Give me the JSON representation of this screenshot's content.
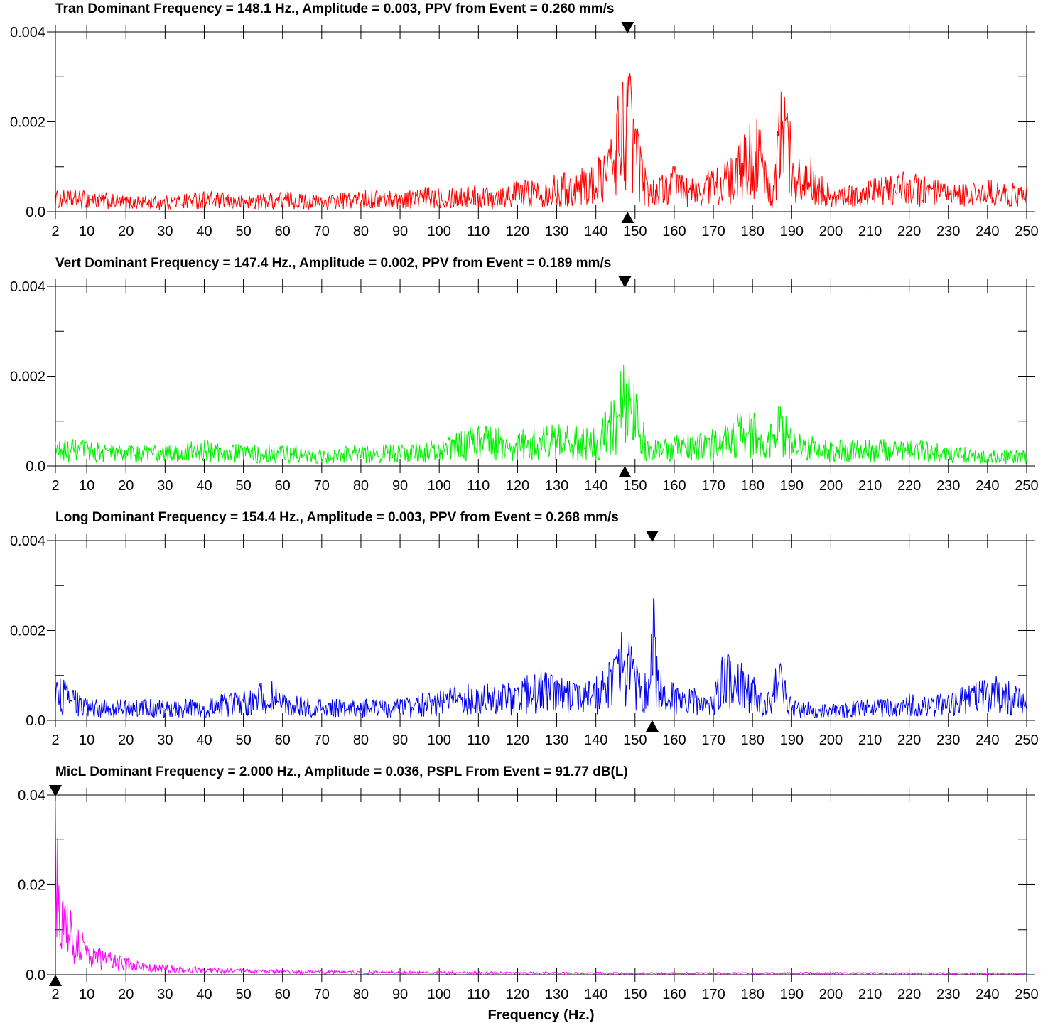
{
  "chart_data": [
    {
      "type": "line",
      "title": "Tran Dominant Frequency = 148.1 Hz., Amplitude = 0.003,  PPV from Event = 0.260 mm/s",
      "color": "#ff0000",
      "dominant_frequency": 148.1,
      "xlim": [
        2,
        250
      ],
      "ylim": [
        0,
        0.004
      ],
      "y_ticks": [
        "0.0",
        "0.002",
        "0.004"
      ],
      "x_ticks": [
        "2",
        "10",
        "20",
        "30",
        "40",
        "50",
        "60",
        "70",
        "80",
        "90",
        "100",
        "110",
        "120",
        "130",
        "140",
        "150",
        "160",
        "170",
        "180",
        "190",
        "200",
        "210",
        "220",
        "230",
        "240",
        "250"
      ],
      "x": [
        2,
        10,
        20,
        30,
        40,
        50,
        60,
        70,
        80,
        90,
        100,
        110,
        120,
        130,
        140,
        144,
        146,
        148,
        150,
        152,
        155,
        160,
        165,
        170,
        175,
        178,
        180,
        182,
        185,
        187,
        188,
        190,
        193,
        195,
        200,
        210,
        220,
        230,
        240,
        250
      ],
      "y": [
        0.0004,
        0.0004,
        0.0003,
        0.0003,
        0.0004,
        0.0003,
        0.0004,
        0.0003,
        0.0004,
        0.0004,
        0.0005,
        0.0005,
        0.0006,
        0.0007,
        0.0009,
        0.0015,
        0.0025,
        0.003,
        0.0022,
        0.0009,
        0.0006,
        0.0009,
        0.0006,
        0.0009,
        0.001,
        0.0015,
        0.0019,
        0.0016,
        0.0003,
        0.0022,
        0.0026,
        0.0015,
        0.0008,
        0.0012,
        0.0004,
        0.0006,
        0.0008,
        0.0005,
        0.0006,
        0.0005
      ]
    },
    {
      "type": "line",
      "title": "Vert Dominant Frequency = 147.4 Hz., Amplitude = 0.002,  PPV from Event = 0.189 mm/s",
      "color": "#00ee00",
      "dominant_frequency": 147.4,
      "xlim": [
        2,
        250
      ],
      "ylim": [
        0,
        0.004
      ],
      "y_ticks": [
        "0.0",
        "0.002",
        "0.004"
      ],
      "x_ticks": [
        "2",
        "10",
        "20",
        "30",
        "40",
        "50",
        "60",
        "70",
        "80",
        "90",
        "100",
        "110",
        "120",
        "130",
        "140",
        "150",
        "160",
        "170",
        "180",
        "190",
        "200",
        "210",
        "220",
        "230",
        "240",
        "250"
      ],
      "x": [
        2,
        10,
        20,
        30,
        40,
        50,
        60,
        70,
        80,
        90,
        100,
        110,
        120,
        130,
        140,
        145,
        147,
        150,
        153,
        160,
        170,
        178,
        180,
        183,
        185,
        187,
        190,
        200,
        210,
        220,
        230,
        240,
        250
      ],
      "y": [
        0.0005,
        0.0005,
        0.0004,
        0.0004,
        0.0005,
        0.0004,
        0.0004,
        0.0003,
        0.0004,
        0.0004,
        0.0005,
        0.0008,
        0.0007,
        0.0008,
        0.0007,
        0.0014,
        0.002,
        0.0015,
        0.0006,
        0.0006,
        0.0007,
        0.0011,
        0.0011,
        0.0004,
        0.0009,
        0.0012,
        0.0007,
        0.0005,
        0.0005,
        0.0005,
        0.0004,
        0.0003,
        0.0003
      ]
    },
    {
      "type": "line",
      "title": "Long Dominant Frequency = 154.4 Hz., Amplitude = 0.003,  PPV from Event = 0.268 mm/s",
      "color": "#0000ee",
      "dominant_frequency": 154.4,
      "xlim": [
        2,
        250
      ],
      "ylim": [
        0,
        0.004
      ],
      "y_ticks": [
        "0.0",
        "0.002",
        "0.004"
      ],
      "x_ticks": [
        "2",
        "10",
        "20",
        "30",
        "40",
        "50",
        "60",
        "70",
        "80",
        "90",
        "100",
        "110",
        "120",
        "130",
        "140",
        "150",
        "160",
        "170",
        "180",
        "190",
        "200",
        "210",
        "220",
        "230",
        "240",
        "250"
      ],
      "x": [
        2,
        10,
        20,
        30,
        40,
        50,
        57,
        60,
        70,
        80,
        90,
        100,
        110,
        120,
        125,
        130,
        140,
        145,
        147,
        150,
        153,
        154.4,
        156,
        160,
        165,
        170,
        173,
        175,
        180,
        183,
        187,
        190,
        200,
        210,
        220,
        230,
        240,
        250
      ],
      "y": [
        0.0009,
        0.0004,
        0.0004,
        0.0004,
        0.0004,
        0.0006,
        0.0008,
        0.0005,
        0.0004,
        0.0004,
        0.0004,
        0.0006,
        0.0007,
        0.0007,
        0.001,
        0.0008,
        0.0008,
        0.0013,
        0.0018,
        0.0012,
        0.0009,
        0.0028,
        0.0009,
        0.0007,
        0.0006,
        0.0006,
        0.0014,
        0.0012,
        0.0009,
        0.0004,
        0.0012,
        0.0004,
        0.0003,
        0.0004,
        0.0005,
        0.0005,
        0.0009,
        0.0006
      ]
    },
    {
      "type": "line",
      "title": "MicL Dominant Frequency = 2.000 Hz., Amplitude = 0.036,  PSPL From Event = 91.77 dB(L)",
      "color": "#ff00ff",
      "dominant_frequency": 2.0,
      "xlim": [
        2,
        250
      ],
      "ylim": [
        0,
        0.04
      ],
      "y_ticks": [
        "0.0",
        "0.02",
        "0.04"
      ],
      "x_ticks": [
        "2",
        "10",
        "20",
        "30",
        "40",
        "50",
        "60",
        "70",
        "80",
        "90",
        "100",
        "110",
        "120",
        "130",
        "140",
        "150",
        "160",
        "170",
        "180",
        "190",
        "200",
        "210",
        "220",
        "230",
        "240",
        "250"
      ],
      "x": [
        2,
        3,
        4,
        5,
        6,
        8,
        10,
        12,
        15,
        20,
        25,
        30,
        40,
        50,
        60,
        70,
        80,
        100,
        120,
        150,
        200,
        250
      ],
      "y": [
        0.036,
        0.028,
        0.022,
        0.018,
        0.013,
        0.01,
        0.008,
        0.006,
        0.005,
        0.0035,
        0.0025,
        0.002,
        0.0015,
        0.0012,
        0.001,
        0.0009,
        0.0008,
        0.0007,
        0.0006,
        0.0005,
        0.0005,
        0.0004
      ],
      "xlabel": "Frequency (Hz.)"
    }
  ]
}
